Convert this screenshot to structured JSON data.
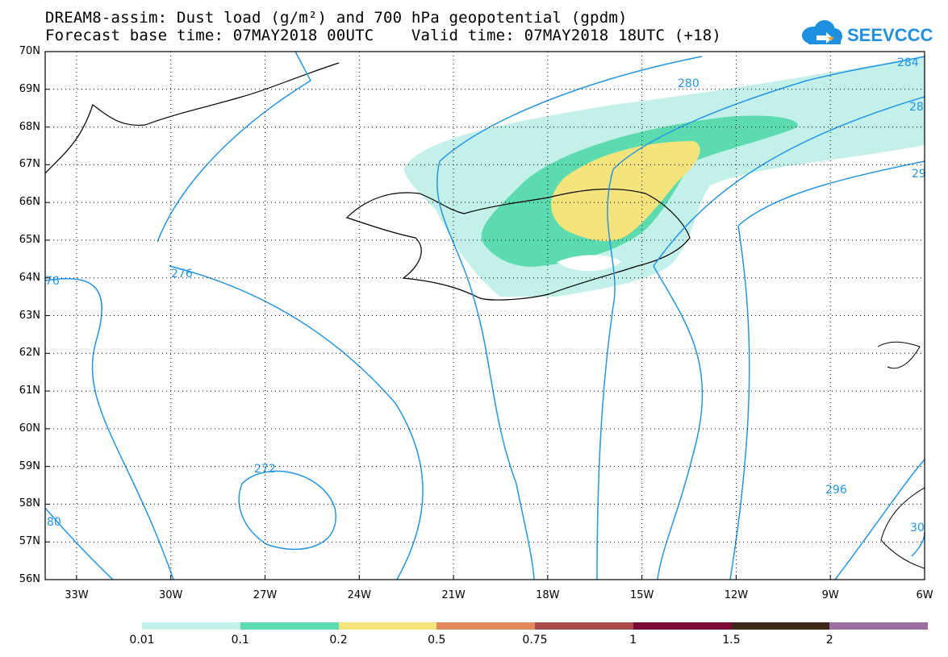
{
  "header": {
    "title_line1": "DREAM8-assim: Dust load (g/m²) and 700 hPa geopotential (gpdm)",
    "title_line2": "Forecast base time: 07MAY2018 00UTC    Valid time: 07MAY2018 18UTC (+18)"
  },
  "logo": {
    "text": "SEEVCCC",
    "color": "#1f8fe0",
    "icon": "cloud-logo-icon"
  },
  "axes": {
    "lat_labels": [
      "70N",
      "69N",
      "68N",
      "67N",
      "66N",
      "65N",
      "64N",
      "63N",
      "62N",
      "61N",
      "60N",
      "59N",
      "58N",
      "57N",
      "56N"
    ],
    "lon_labels": [
      "33W",
      "30W",
      "27W",
      "24W",
      "21W",
      "18W",
      "15W",
      "12W",
      "9W",
      "6W"
    ]
  },
  "contours": {
    "color": "#2196e8",
    "labels": [
      "280",
      "284",
      "28",
      "276",
      "76",
      "29",
      "272",
      "296",
      "80",
      "30"
    ]
  },
  "colorbar": {
    "labels": [
      "0.01",
      "0.1",
      "0.2",
      "0.5",
      "0.75",
      "1",
      "1.5",
      "2"
    ],
    "colors": [
      "#c4f0ea",
      "#5ddbb0",
      "#f5e47c",
      "#e38a5c",
      "#a94b48",
      "#7b0b35",
      "#3b2a1a",
      "#9a6fa0"
    ]
  }
}
